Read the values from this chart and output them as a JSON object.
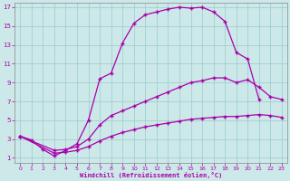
{
  "xlabel": "Windchill (Refroidissement éolien,°C)",
  "ylabel": "",
  "bg_color": "#cce8e8",
  "line_color": "#aa00aa",
  "xlim": [
    -0.5,
    23.5
  ],
  "ylim": [
    0.5,
    17.5
  ],
  "xticks": [
    0,
    1,
    2,
    3,
    4,
    5,
    6,
    7,
    8,
    9,
    10,
    11,
    12,
    13,
    14,
    15,
    16,
    17,
    18,
    19,
    20,
    21,
    22,
    23
  ],
  "yticks": [
    1,
    3,
    5,
    7,
    9,
    11,
    13,
    15,
    17
  ],
  "grid_color": "#99cccc",
  "series": [
    {
      "x": [
        0,
        1,
        2,
        3,
        4,
        5,
        6,
        7,
        8,
        9,
        10,
        11,
        12,
        13,
        14,
        15,
        16,
        17,
        18,
        19,
        20,
        21
      ],
      "y": [
        3.3,
        2.9,
        1.9,
        1.2,
        1.8,
        2.5,
        5.0,
        9.4,
        10.0,
        13.2,
        15.3,
        16.2,
        16.5,
        16.8,
        17.0,
        16.9,
        17.0,
        16.5,
        15.5,
        12.2,
        11.5,
        7.2
      ]
    },
    {
      "x": [
        0,
        3,
        4,
        5,
        6,
        7,
        8,
        9,
        10,
        11,
        12,
        13,
        14,
        15,
        16,
        17,
        18,
        19,
        20,
        21,
        22,
        23
      ],
      "y": [
        3.3,
        1.8,
        1.9,
        2.2,
        3.0,
        4.5,
        5.5,
        6.0,
        6.5,
        7.0,
        7.5,
        8.0,
        8.5,
        9.0,
        9.2,
        9.5,
        9.5,
        9.0,
        9.3,
        8.5,
        7.5,
        7.2
      ]
    },
    {
      "x": [
        0,
        3,
        4,
        5,
        6,
        7,
        8,
        9,
        10,
        11,
        12,
        13,
        14,
        15,
        16,
        17,
        18,
        19,
        20,
        21,
        22,
        23
      ],
      "y": [
        3.3,
        1.5,
        1.6,
        1.8,
        2.2,
        2.8,
        3.3,
        3.7,
        4.0,
        4.3,
        4.5,
        4.7,
        4.9,
        5.1,
        5.2,
        5.3,
        5.4,
        5.4,
        5.5,
        5.6,
        5.5,
        5.3
      ]
    }
  ],
  "marker": "+",
  "markersize": 3.5,
  "linewidth": 0.9
}
